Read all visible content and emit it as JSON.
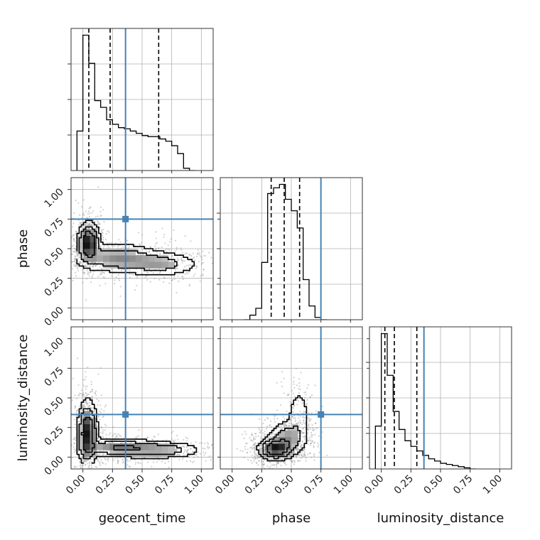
{
  "chart_data": {
    "type": "corner",
    "parameters": [
      "geocent_time",
      "phase",
      "luminosity_distance"
    ],
    "ranges": [
      [
        -0.1,
        1.1
      ],
      [
        -0.1,
        1.1
      ],
      [
        -0.1,
        1.1
      ]
    ],
    "ticks": [
      0.0,
      0.25,
      0.5,
      0.75,
      1.0
    ],
    "tick_labels": [
      "0.00",
      "0.25",
      "0.50",
      "0.75",
      "1.00"
    ],
    "grid": true,
    "colors": {
      "truth": "#4682b4",
      "hist": "#000000",
      "quantile": "#000000",
      "samples": "#999999"
    },
    "truths": [
      0.36,
      0.75,
      0.36
    ],
    "quantiles": [
      [
        0.05,
        0.23,
        0.64
      ],
      [
        0.33,
        0.44,
        0.57
      ],
      [
        0.03,
        0.11,
        0.3
      ]
    ],
    "histograms": [
      {
        "edges_start": -0.05,
        "bin_width": 0.05,
        "counts": [
          0.35,
          1.2,
          0.95,
          0.62,
          0.56,
          0.45,
          0.41,
          0.38,
          0.37,
          0.35,
          0.33,
          0.31,
          0.3,
          0.3,
          0.28,
          0.26,
          0.22,
          0.15,
          0.02,
          0.0
        ]
      },
      {
        "edges_start": 0.1,
        "bin_width": 0.05,
        "counts": [
          0.0,
          0.04,
          0.1,
          0.5,
          1.1,
          1.15,
          1.18,
          1.05,
          0.95,
          0.8,
          0.35,
          0.12,
          0.02,
          0.0
        ]
      },
      {
        "edges_start": -0.05,
        "bin_width": 0.05,
        "counts": [
          0.38,
          1.2,
          0.83,
          0.51,
          0.35,
          0.25,
          0.2,
          0.16,
          0.12,
          0.09,
          0.07,
          0.05,
          0.04,
          0.03,
          0.02,
          0.01,
          0.0
        ]
      }
    ],
    "density_blobs": [
      {
        "panel": "phase_vs_geocent_time",
        "components": [
          {
            "cx": 0.05,
            "cy": 0.55,
            "sx": 0.045,
            "sy": 0.08,
            "w": 1.0
          },
          {
            "cx": 0.3,
            "cy": 0.42,
            "sx": 0.18,
            "sy": 0.06,
            "w": 0.45
          },
          {
            "cx": 0.65,
            "cy": 0.37,
            "sx": 0.16,
            "sy": 0.05,
            "w": 0.35
          }
        ]
      },
      {
        "panel": "luminosity_distance_vs_geocent_time",
        "components": [
          {
            "cx": 0.04,
            "cy": 0.2,
            "sx": 0.04,
            "sy": 0.13,
            "w": 1.0
          },
          {
            "cx": 0.3,
            "cy": 0.08,
            "sx": 0.16,
            "sy": 0.04,
            "w": 0.55
          },
          {
            "cx": 0.65,
            "cy": 0.06,
            "sx": 0.17,
            "sy": 0.035,
            "w": 0.45
          }
        ]
      },
      {
        "panel": "luminosity_distance_vs_phase",
        "components": [
          {
            "cx": 0.37,
            "cy": 0.07,
            "sx": 0.07,
            "sy": 0.045,
            "w": 1.0
          },
          {
            "cx": 0.47,
            "cy": 0.16,
            "sx": 0.08,
            "sy": 0.07,
            "w": 0.45
          },
          {
            "cx": 0.56,
            "cy": 0.35,
            "sx": 0.05,
            "sy": 0.12,
            "w": 0.2
          }
        ]
      }
    ]
  }
}
